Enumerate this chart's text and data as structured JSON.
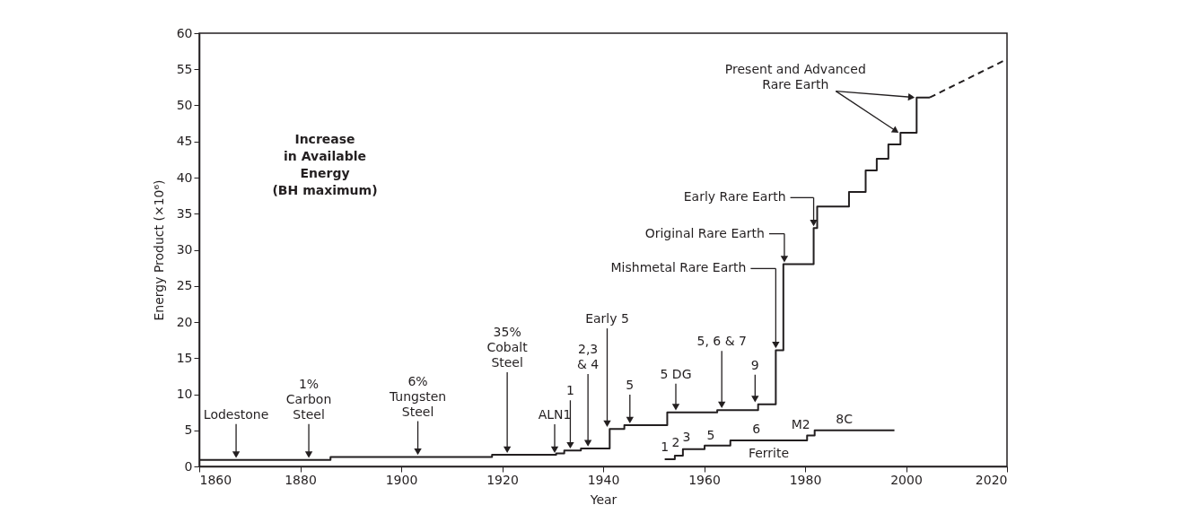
{
  "chart_data": {
    "type": "step",
    "xlabel": "Year",
    "ylabel": "Energy Product (×10⁶)",
    "xlim": [
      1860,
      2020
    ],
    "xticks": [
      1860,
      1880,
      1900,
      1920,
      1940,
      1960,
      1980,
      2000,
      2020
    ],
    "ylim": [
      0,
      60
    ],
    "yticks": [
      0,
      5,
      10,
      15,
      20,
      25,
      30,
      35,
      40,
      45,
      50,
      55,
      60
    ],
    "grid": false,
    "series": [
      {
        "line_style": "solid",
        "color": "#231f20",
        "x": [
          1860,
          1886,
          1918,
          1930.7,
          1932.3,
          1935.6,
          1941.3,
          1944.2,
          1952.7,
          1962.6,
          1970.7,
          1974.2,
          1975.7,
          1981.7,
          1982.4,
          1988.7,
          1992,
          1994.2,
          1996.5,
          1998.9,
          2002.1,
          2004.7
        ],
        "values": [
          0.9,
          1.3,
          1.6,
          1.8,
          2.2,
          2.5,
          5.2,
          5.7,
          7.5,
          7.8,
          8.6,
          16.1,
          28,
          33,
          36,
          38,
          41,
          42.6,
          44.6,
          46.2,
          51.1,
          51.1
        ]
      },
      {
        "type": "line",
        "line_style": "dashed",
        "color": "#231f20",
        "x": [
          2004.7,
          2020
        ],
        "values": [
          51.1,
          56.4
        ]
      },
      {
        "name": "Ferrite",
        "line_style": "solid",
        "color": "#231f20",
        "x": [
          1952.2,
          1954.2,
          1955.8,
          1960.1,
          1965.2,
          1980.4,
          1981.9,
          1997.7
        ],
        "values": [
          1.0,
          1.5,
          2.4,
          2.9,
          3.6,
          4.3,
          5.0,
          5.0
        ]
      }
    ],
    "annotations": [
      {
        "text": "Lodestone",
        "x": 1867.3,
        "y": 0.9
      },
      {
        "text": "1%\nCarbon\nSteel",
        "x": 1881.7,
        "y": 0.9
      },
      {
        "text": "6%\nTungsten\nSteel",
        "x": 1903.3,
        "y": 1.3
      },
      {
        "text": "35%\nCobalt\nSteel",
        "x": 1921,
        "y": 1.6
      },
      {
        "text": "ALN1",
        "x": 1930.4,
        "y": 1.6
      },
      {
        "text": "1",
        "x": 1933.5,
        "y": 2.2
      },
      {
        "text": "2,3\n& 4",
        "x": 1937,
        "y": 2.5
      },
      {
        "text": "Early 5",
        "x": 1940.8,
        "y": 5.2
      },
      {
        "text": "5",
        "x": 1945.3,
        "y": 5.7
      },
      {
        "text": "5 DG",
        "x": 1954.4,
        "y": 7.5
      },
      {
        "text": "5, 6 & 7",
        "x": 1963.5,
        "y": 7.8
      },
      {
        "text": "9",
        "x": 1970.1,
        "y": 8.6
      },
      "Mishmetal Rare Earth",
      {
        "text": "Original Rare Earth",
        "x": 1975.9,
        "y": 28
      },
      {
        "text": "Early Rare Earth",
        "x": 1981.7,
        "y": 33
      },
      {
        "text": "Present and Advanced\nRare Earth",
        "x": 2002.1,
        "y": 51.1
      },
      "1",
      "2",
      "3",
      "5",
      "6",
      "M2",
      "8C",
      "Increase\nin Available\nEnergy\n(BH maximum)"
    ]
  }
}
